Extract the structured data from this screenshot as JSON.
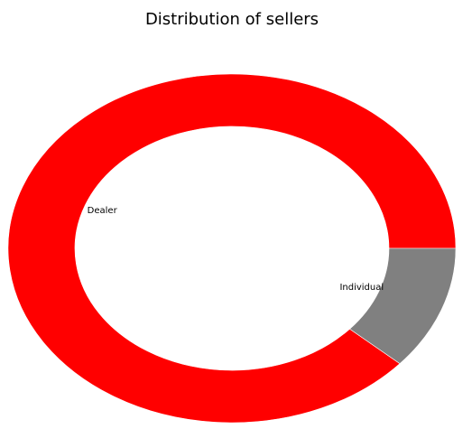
{
  "chart_data": {
    "type": "pie",
    "style": "donut",
    "title": "Distribution of sellers",
    "categories": [
      "Dealer",
      "Individual"
    ],
    "values": [
      88.5,
      11.5
    ],
    "colors": [
      "#ff0000",
      "#808080"
    ],
    "legend": "none"
  }
}
